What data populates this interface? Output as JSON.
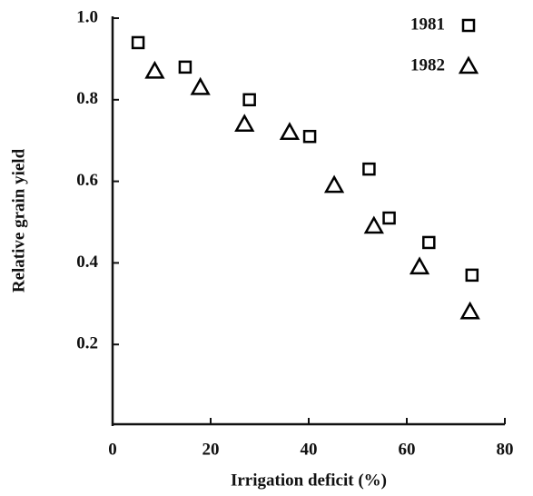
{
  "chart_data": {
    "type": "scatter",
    "xlabel": "Irrigation deficit (%)",
    "ylabel": "Relative grain yield",
    "xlim": [
      0,
      80
    ],
    "xticks": [
      0,
      20,
      40,
      60,
      80
    ],
    "ylim": [
      0,
      1.0
    ],
    "yticks": [
      0.2,
      0.4,
      0.6,
      0.8,
      {
        "value": 1.0,
        "label": "1.0"
      }
    ],
    "legend": "top-right",
    "series": [
      {
        "name": "1981",
        "marker": "square",
        "color": "#000000",
        "x": [
          5.2,
          14.8,
          27.9,
          40.2,
          52.3,
          56.4,
          64.5,
          73.3
        ],
        "values": [
          0.94,
          0.88,
          0.8,
          0.71,
          0.63,
          0.51,
          0.45,
          0.37
        ]
      },
      {
        "name": "1982",
        "marker": "triangle",
        "color": "#000000",
        "x": [
          8.6,
          17.9,
          26.9,
          36.1,
          45.2,
          53.3,
          62.6,
          72.9
        ],
        "values": [
          0.87,
          0.83,
          0.74,
          0.72,
          0.59,
          0.49,
          0.39,
          0.28
        ]
      }
    ]
  }
}
